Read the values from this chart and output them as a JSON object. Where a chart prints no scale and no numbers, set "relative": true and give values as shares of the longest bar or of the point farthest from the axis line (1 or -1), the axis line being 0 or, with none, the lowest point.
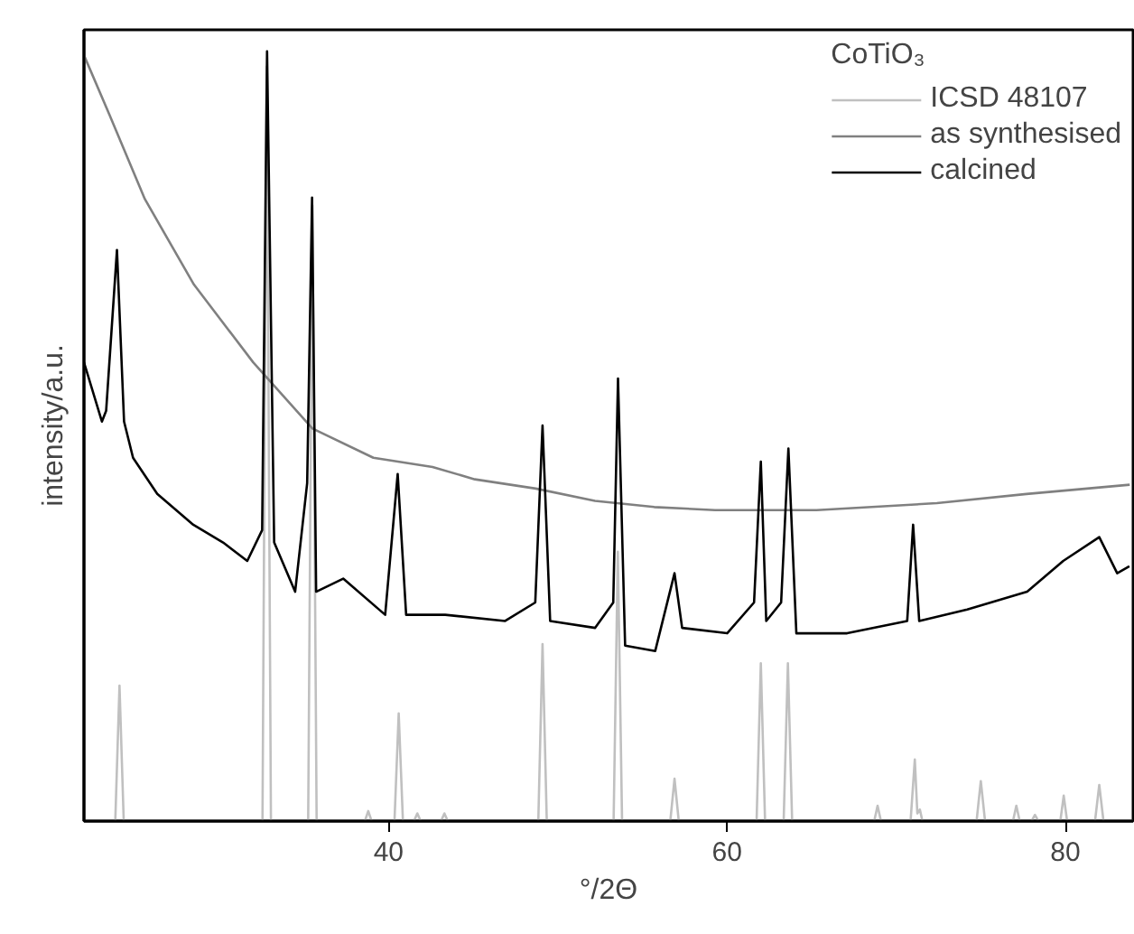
{
  "chart_data": {
    "type": "line",
    "relative": true,
    "xlabel": "°/2Θ",
    "ylabel": "intensity/a.u.",
    "legend_title": "CoTiO₃",
    "legend": "top right",
    "xlim": [
      22,
      84
    ],
    "xticks": [
      40,
      60,
      80
    ],
    "series": [
      {
        "name": "ICSD 48107",
        "color": "#c0c0c0",
        "x": [
          22.0,
          23.85,
          24.1,
          24.35,
          32.55,
          32.8,
          33.05,
          35.25,
          35.5,
          35.75,
          38.6,
          38.8,
          39.0,
          40.35,
          40.6,
          40.85,
          41.5,
          41.7,
          41.9,
          43.1,
          43.3,
          43.5,
          48.85,
          49.1,
          49.35,
          53.3,
          53.55,
          53.8,
          56.65,
          56.9,
          57.15,
          61.75,
          62.0,
          62.25,
          63.35,
          63.6,
          63.85,
          68.7,
          68.9,
          69.1,
          70.85,
          71.1,
          71.25,
          71.4,
          71.55,
          74.75,
          75.0,
          75.25,
          76.9,
          77.1,
          77.3,
          78.0,
          78.2,
          78.4,
          79.7,
          79.9,
          80.1,
          81.75,
          82.0,
          82.25,
          84.0
        ],
        "values": [
          0,
          0,
          0.176,
          0,
          0,
          0.98,
          0,
          0,
          0.8,
          0,
          0,
          0.013,
          0,
          0,
          0.14,
          0,
          0,
          0.01,
          0,
          0,
          0.01,
          0,
          0,
          0.23,
          0,
          0,
          0.35,
          0,
          0,
          0.055,
          0,
          0,
          0.205,
          0,
          0,
          0.205,
          0,
          0,
          0.02,
          0,
          0,
          0.08,
          0.01,
          0.015,
          0,
          0,
          0.052,
          0,
          0,
          0.02,
          0,
          0,
          0.008,
          0,
          0,
          0.033,
          0,
          0,
          0.047,
          0,
          0
        ]
      },
      {
        "name": "as synthesised",
        "color": "#808080",
        "x": [
          22.0,
          23.5,
          25.6,
          28.5,
          32.0,
          35.5,
          39.1,
          42.6,
          45.1,
          48.7,
          52.2,
          55.7,
          59.3,
          62.9,
          65.3,
          72.4,
          77.7,
          83.8
        ],
        "values": [
          0.995,
          0.918,
          0.808,
          0.697,
          0.596,
          0.51,
          0.472,
          0.46,
          0.444,
          0.432,
          0.416,
          0.408,
          0.404,
          0.404,
          0.404,
          0.413,
          0.425,
          0.437
        ]
      },
      {
        "name": "calcined",
        "color": "#000000",
        "x": [
          22.0,
          23.06,
          23.31,
          23.95,
          24.37,
          24.9,
          26.33,
          28.46,
          30.22,
          31.65,
          32.53,
          32.82,
          33.24,
          34.48,
          35.19,
          35.48,
          35.72,
          37.32,
          39.8,
          40.54,
          41.04,
          42.64,
          43.35,
          46.89,
          48.67,
          49.1,
          49.55,
          52.21,
          53.28,
          53.56,
          53.98,
          55.76,
          56.9,
          57.35,
          60.01,
          61.6,
          62.0,
          62.32,
          63.2,
          63.63,
          64.1,
          67.1,
          70.65,
          71.0,
          71.36,
          74.2,
          77.74,
          79.87,
          82.0,
          83.06,
          83.78
        ],
        "values": [
          0.596,
          0.519,
          0.533,
          0.742,
          0.519,
          0.472,
          0.425,
          0.385,
          0.362,
          0.338,
          0.378,
          1.0,
          0.362,
          0.298,
          0.439,
          0.81,
          0.298,
          0.315,
          0.268,
          0.451,
          0.268,
          0.268,
          0.268,
          0.26,
          0.284,
          0.514,
          0.26,
          0.251,
          0.284,
          0.575,
          0.228,
          0.221,
          0.322,
          0.251,
          0.244,
          0.284,
          0.467,
          0.26,
          0.284,
          0.484,
          0.244,
          0.244,
          0.26,
          0.385,
          0.26,
          0.275,
          0.298,
          0.338,
          0.369,
          0.322,
          0.331
        ]
      }
    ]
  }
}
